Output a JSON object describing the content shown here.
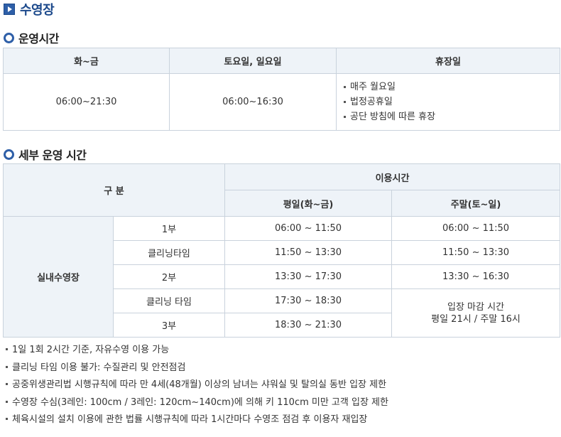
{
  "page": {
    "title": "수영장"
  },
  "hours": {
    "heading": "운영시간",
    "headers": [
      "화~금",
      "토요일, 일요일",
      "휴장일"
    ],
    "weekday": "06:00~21:30",
    "weekend": "06:00~16:30",
    "closed": [
      "매주 월요일",
      "법정공휴일",
      "공단 방침에 따른 휴장"
    ]
  },
  "detail": {
    "heading": "세부 운영 시간",
    "division_label": "구 분",
    "usage_label": "이용시간",
    "weekday_label": "평일(화~금)",
    "weekend_label": "주말(토~일)",
    "facility": "실내수영장",
    "rows": [
      {
        "session": "1부",
        "weekday": "06:00 ~ 11:50",
        "weekend": "06:00 ~ 11:50"
      },
      {
        "session": "클리닝타임",
        "weekday": "11:50 ~ 13:30",
        "weekend": "11:50 ~ 13:30"
      },
      {
        "session": "2부",
        "weekday": "13:30 ~ 17:30",
        "weekend": "13:30 ~ 16:30"
      },
      {
        "session": "클리닝 타임",
        "weekday": "17:30 ~ 18:30"
      },
      {
        "session": "3부",
        "weekday": "18:30 ~ 21:30"
      }
    ],
    "weekend_close_line1": "입장 마감 시간",
    "weekend_close_line2": "평일 21시 / 주말 16시"
  },
  "notes": [
    "1일 1회 2시간 기준, 자유수영 이용 가능",
    "클리닝 타임 이용 불가: 수질관리 및 안전점검",
    "공중위생관리법 시행규칙에 따라 만 4세(48개월) 이상의 남녀는 샤워실 및 탈의실 동반 입장 제한",
    "수영장 수심(3레인: 100cm / 3레인: 120cm~140cm)에 의해 키 110cm 미만 고객 입장 제한",
    "체육시설의 설치 이용에 관한 법률 시행규칙에 따라 1시간마다 수영조 점검 후 이용자 재입장"
  ]
}
